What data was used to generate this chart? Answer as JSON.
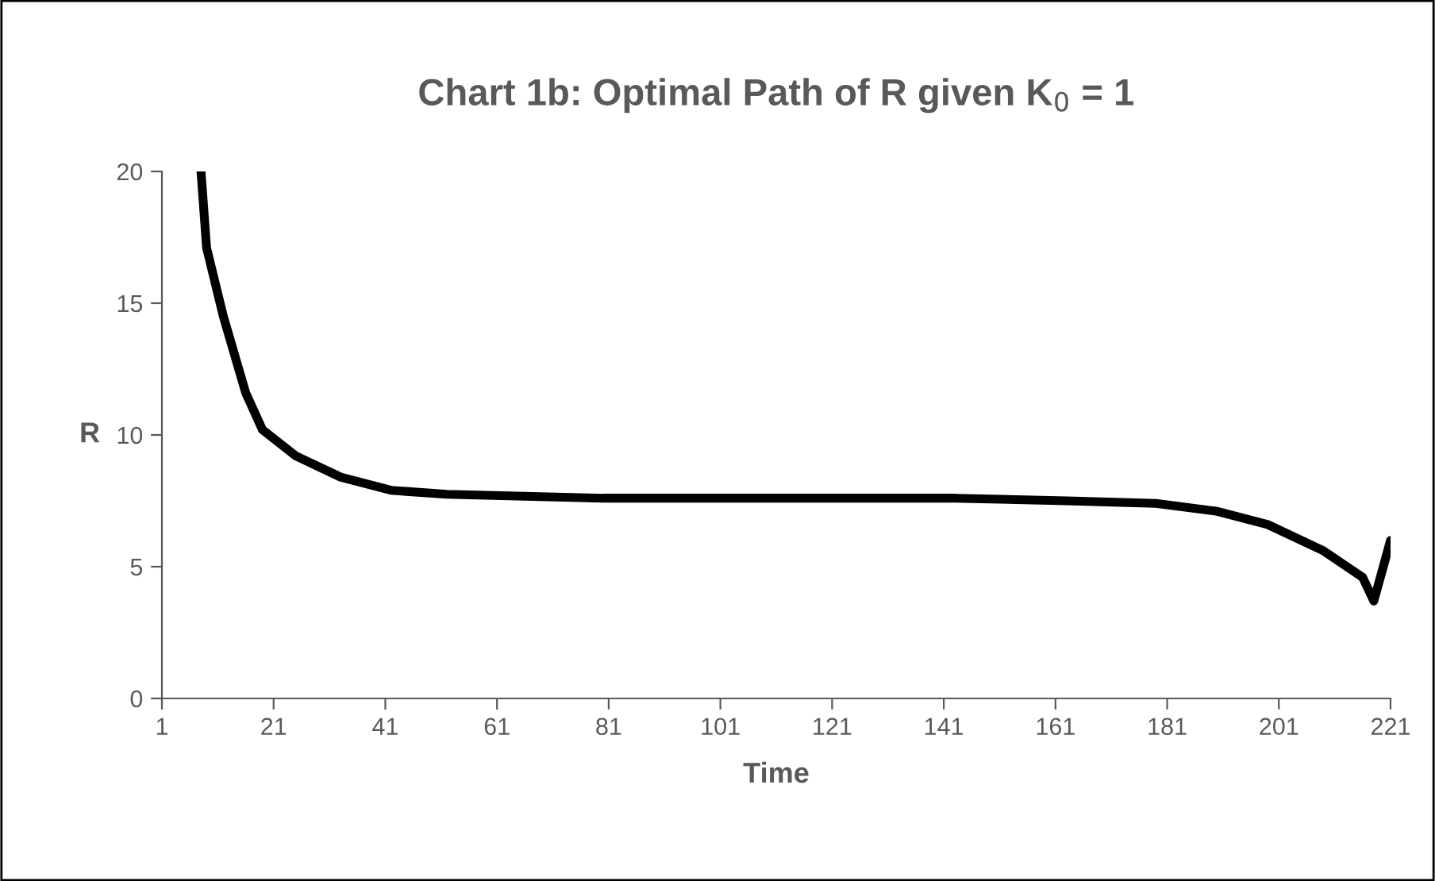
{
  "chart_data": {
    "type": "line",
    "title": "Chart 1b: Optimal Path of R given K$_{0}$ = 1",
    "xlabel": "Time",
    "ylabel": "R",
    "xlim": [
      1,
      221
    ],
    "xticks": [
      1,
      21,
      41,
      61,
      81,
      101,
      121,
      141,
      161,
      181,
      201,
      221
    ],
    "ylim": [
      0,
      20
    ],
    "yticks": [
      0,
      5,
      10,
      15,
      20
    ],
    "grid": false,
    "legend": false,
    "marker": "none",
    "line_style": "solid",
    "series": [
      {
        "color": "#000000",
        "x": [
          8,
          9,
          12,
          16,
          19,
          25,
          33,
          42,
          52,
          80,
          143,
          163,
          179,
          190,
          199,
          209,
          216,
          218,
          221
        ],
        "values": [
          20,
          17.1,
          14.5,
          11.6,
          10.2,
          9.2,
          8.4,
          7.9,
          7.75,
          7.6,
          7.6,
          7.5,
          7.4,
          7.1,
          6.6,
          5.6,
          4.6,
          3.7,
          6.0
        ]
      }
    ]
  }
}
